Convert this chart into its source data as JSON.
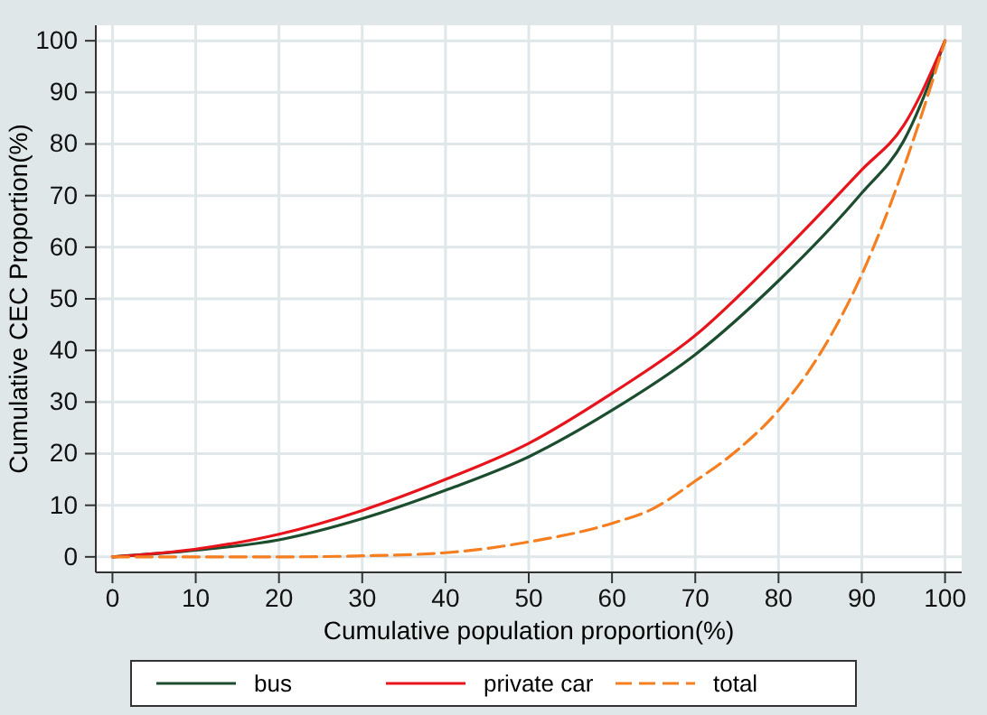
{
  "chart_data": {
    "type": "line",
    "xlabel": "Cumulative population proportion(%)",
    "ylabel": "Cumulative CEC Proportion(%)",
    "xlim": [
      -2,
      102
    ],
    "ylim": [
      -3,
      103
    ],
    "xticks": [
      0,
      10,
      20,
      30,
      40,
      50,
      60,
      70,
      80,
      90,
      100
    ],
    "yticks": [
      0,
      10,
      20,
      30,
      40,
      50,
      60,
      70,
      80,
      90,
      100
    ],
    "grid": true,
    "legend": "bottom",
    "marker": "none",
    "x": [
      0,
      10,
      20,
      30,
      40,
      50,
      60,
      70,
      80,
      90,
      95,
      100
    ],
    "series": [
      {
        "name": "bus",
        "color": "#1b4d2e",
        "line_style": "solid",
        "values": [
          0,
          1.3,
          3.3,
          7.4,
          12.9,
          19.4,
          28.4,
          39.2,
          53.5,
          70.5,
          80.5,
          100
        ]
      },
      {
        "name": "private car",
        "color": "#e8141c",
        "line_style": "solid",
        "values": [
          0,
          1.5,
          4.4,
          9,
          15,
          22,
          31.7,
          42.9,
          58.2,
          75,
          83.5,
          100
        ]
      },
      {
        "name": "total",
        "color": "#f57e20",
        "line_style": "dashed",
        "x": [
          0,
          20,
          30,
          40,
          50,
          60,
          65,
          70,
          75,
          80,
          85,
          90,
          95,
          100
        ],
        "values": [
          0,
          0,
          0.2,
          0.8,
          2.9,
          6.5,
          9.4,
          14.7,
          20.6,
          28.4,
          39.4,
          54.7,
          75.2,
          100
        ]
      }
    ]
  }
}
